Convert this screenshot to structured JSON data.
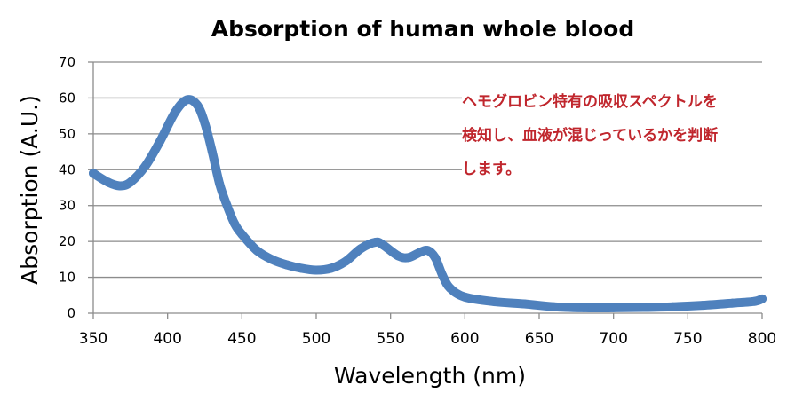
{
  "chart_data": {
    "type": "line",
    "title": "Absorption of human whole blood",
    "xlabel": "Wavelength (nm)",
    "ylabel": "Absorption (A.U.)",
    "xlim": [
      350,
      800
    ],
    "ylim": [
      0,
      70
    ],
    "xticks": [
      350,
      400,
      450,
      500,
      550,
      600,
      650,
      700,
      750,
      800
    ],
    "yticks": [
      0,
      10,
      20,
      30,
      40,
      50,
      60,
      70
    ],
    "grid": "horizontal",
    "series": [
      {
        "name": "Absorption",
        "color": "#4f81bd",
        "x": [
          350,
          360,
          368,
          375,
          385,
          395,
          405,
          413,
          420,
          425,
          430,
          435,
          440,
          445,
          450,
          460,
          470,
          480,
          490,
          500,
          510,
          520,
          530,
          540,
          545,
          555,
          562,
          570,
          575,
          580,
          585,
          590,
          600,
          620,
          640,
          660,
          680,
          700,
          720,
          740,
          760,
          780,
          795,
          800
        ],
        "y": [
          39,
          36.5,
          35.5,
          36.5,
          41,
          48,
          56,
          59.5,
          58,
          53,
          45,
          36,
          30,
          25,
          22,
          17.5,
          15,
          13.5,
          12.5,
          12,
          12.5,
          14.5,
          18,
          19.8,
          19,
          16,
          15.5,
          17,
          17.5,
          15.5,
          10.5,
          7,
          4.5,
          3.2,
          2.6,
          1.8,
          1.5,
          1.5,
          1.6,
          1.8,
          2.2,
          2.8,
          3.3,
          4
        ]
      }
    ],
    "annotation": {
      "lines": [
        "ヘモグロビン特有の吸収スペクトルを",
        "検知し、血液が混じっているかを判断",
        "します。"
      ],
      "color": "#c0262d"
    }
  }
}
